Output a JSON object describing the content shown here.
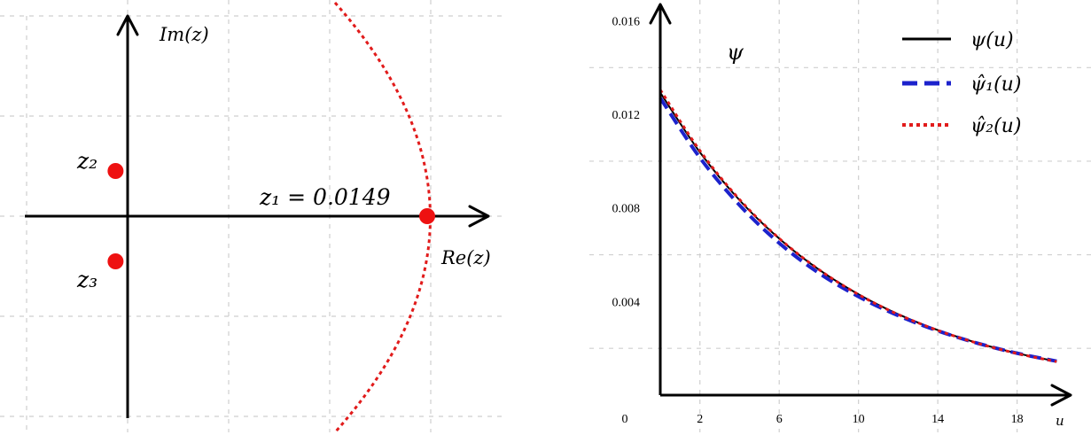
{
  "chart_data": [
    {
      "type": "scatter",
      "xlabel": "Re(z)",
      "ylabel": "Im(z)",
      "grid": true,
      "curve_color": "#e11b1b",
      "point_color": "#ee1111",
      "points": [
        {
          "name": "z1",
          "label": "z₁ = 0.0149",
          "re": 0.0149,
          "im": 0
        },
        {
          "name": "z2",
          "label": "z₂",
          "re": -0.0006,
          "im": 0.0023
        },
        {
          "name": "z3",
          "label": "z₃",
          "re": -0.0006,
          "im": -0.0023
        }
      ]
    },
    {
      "type": "line",
      "ylabel": "ψ",
      "xlabel": "u",
      "grid": true,
      "xlim": [
        0,
        20.7
      ],
      "ylim": [
        0,
        0.0167
      ],
      "x_ticks": [
        "0",
        "2",
        "6",
        "10",
        "14",
        "18"
      ],
      "y_ticks": [
        "0.016",
        "0.012",
        "0.008",
        "0.004"
      ],
      "legend_position": "top-right",
      "x": [
        0,
        2,
        4,
        6,
        8,
        10,
        12,
        14,
        16,
        18,
        20
      ],
      "series": [
        {
          "name": "ψ(u)",
          "color": "#000000",
          "style": "solid",
          "values": [
            0.01293,
            0.01038,
            0.00833,
            0.00669,
            0.00537,
            0.00431,
            0.00346,
            0.00278,
            0.00223,
            0.00179,
            0.00144
          ]
        },
        {
          "name": "ψ̂₁(u)",
          "color": "#1c22cc",
          "style": "dashed",
          "values": [
            0.0127,
            0.01015,
            0.00812,
            0.0065,
            0.00522,
            0.00421,
            0.0034,
            0.00275,
            0.00222,
            0.00179,
            0.00145
          ]
        },
        {
          "name": "ψ̂₂(u)",
          "color": "#e11b1b",
          "style": "dotted",
          "values": [
            0.01305,
            0.01045,
            0.00836,
            0.0067,
            0.00537,
            0.0043,
            0.00345,
            0.00277,
            0.00222,
            0.00178,
            0.00143
          ]
        }
      ]
    }
  ]
}
